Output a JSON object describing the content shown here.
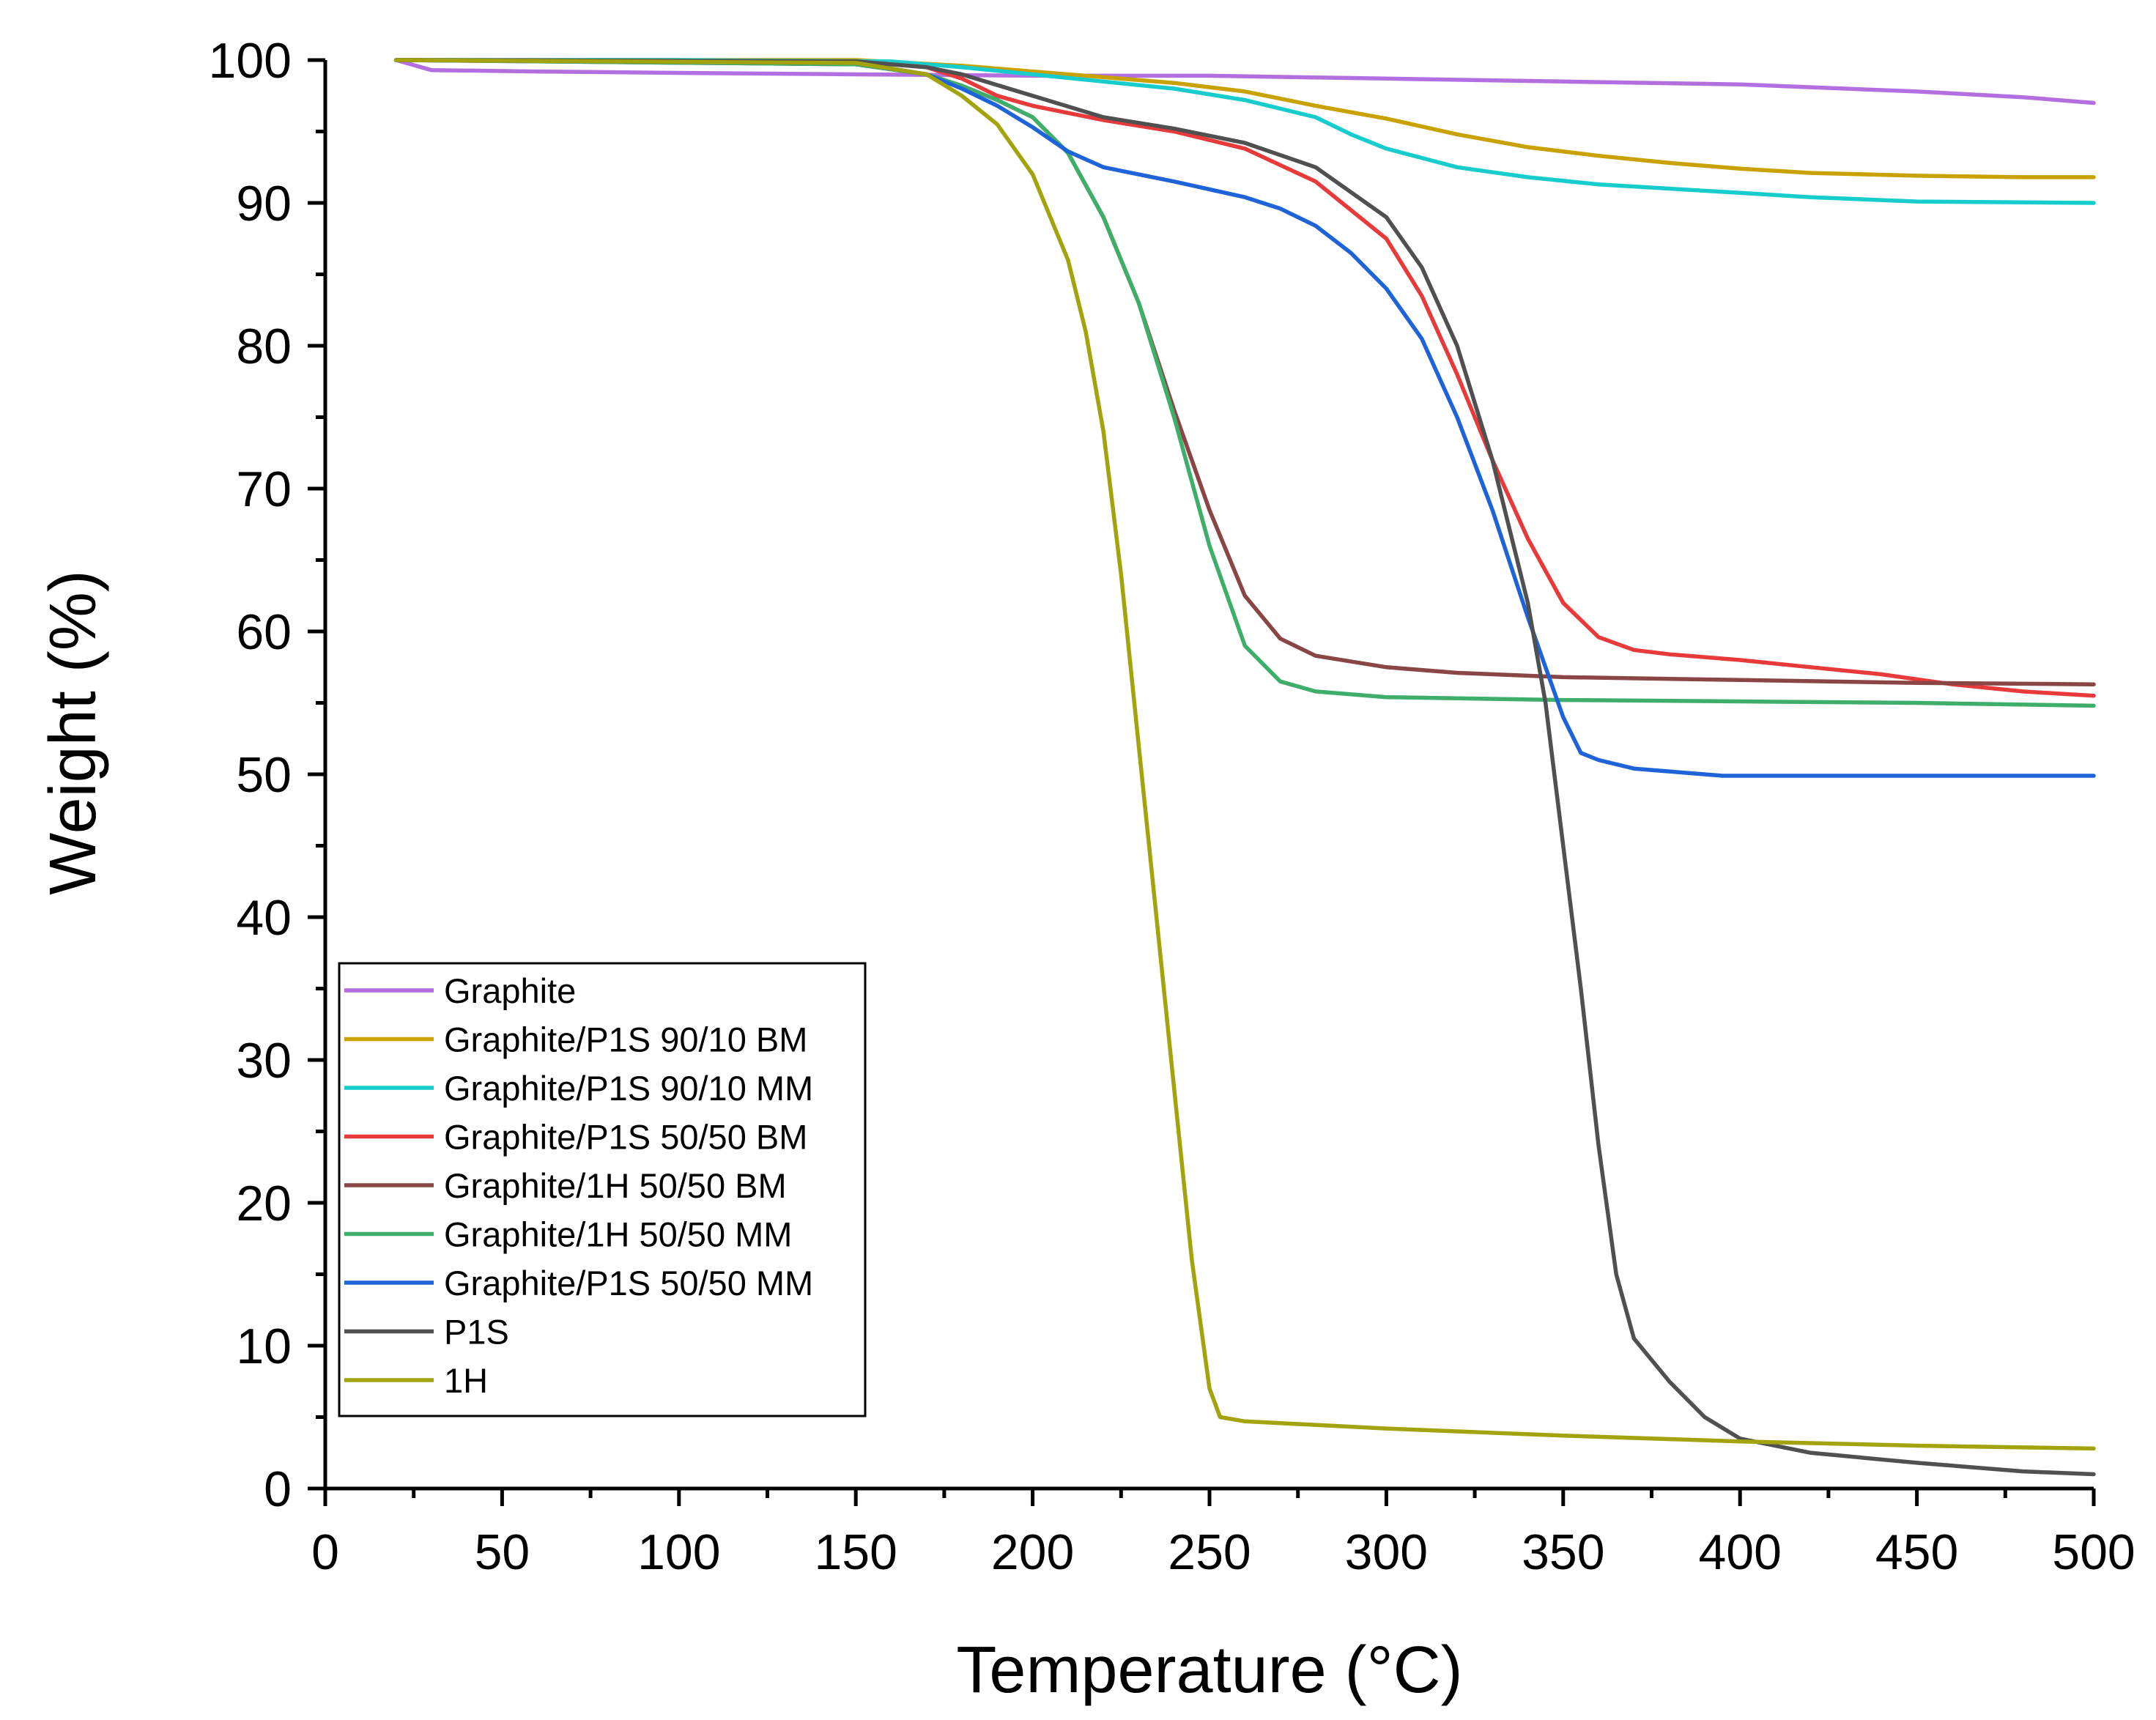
{
  "chart_data": {
    "type": "line",
    "title": "",
    "xlabel": "Temperature (°C)",
    "ylabel": "Weight (%)",
    "xlim": [
      0,
      500
    ],
    "ylim": [
      0,
      100
    ],
    "x_ticks": [
      0,
      50,
      100,
      150,
      200,
      250,
      300,
      350,
      400,
      450,
      500
    ],
    "y_ticks": [
      0,
      10,
      20,
      30,
      40,
      50,
      60,
      70,
      80,
      90,
      100
    ],
    "grid": false,
    "legend_position": "bottom-left",
    "series": [
      {
        "name": "Graphite",
        "color": "#b36fe0",
        "points": [
          [
            20,
            100
          ],
          [
            30,
            99.3
          ],
          [
            60,
            99.2
          ],
          [
            100,
            99.1
          ],
          [
            150,
            99
          ],
          [
            200,
            98.9
          ],
          [
            250,
            98.9
          ],
          [
            300,
            98.7
          ],
          [
            350,
            98.5
          ],
          [
            400,
            98.3
          ],
          [
            450,
            97.8
          ],
          [
            480,
            97.4
          ],
          [
            500,
            97
          ]
        ]
      },
      {
        "name": "Graphite/P1S 90/10 BM",
        "color": "#c9a100",
        "points": [
          [
            20,
            100
          ],
          [
            100,
            100
          ],
          [
            150,
            100
          ],
          [
            180,
            99.6
          ],
          [
            200,
            99.2
          ],
          [
            220,
            98.8
          ],
          [
            240,
            98.4
          ],
          [
            260,
            97.8
          ],
          [
            280,
            96.8
          ],
          [
            300,
            95.9
          ],
          [
            320,
            94.8
          ],
          [
            340,
            93.9
          ],
          [
            360,
            93.3
          ],
          [
            380,
            92.8
          ],
          [
            400,
            92.4
          ],
          [
            420,
            92.1
          ],
          [
            450,
            91.9
          ],
          [
            480,
            91.8
          ],
          [
            500,
            91.8
          ]
        ]
      },
      {
        "name": "Graphite/P1S 90/10 MM",
        "color": "#17cccc",
        "points": [
          [
            20,
            100
          ],
          [
            100,
            100
          ],
          [
            160,
            99.9
          ],
          [
            180,
            99.5
          ],
          [
            200,
            99
          ],
          [
            220,
            98.5
          ],
          [
            240,
            98
          ],
          [
            260,
            97.2
          ],
          [
            280,
            96
          ],
          [
            290,
            94.8
          ],
          [
            300,
            93.8
          ],
          [
            320,
            92.5
          ],
          [
            340,
            91.8
          ],
          [
            360,
            91.3
          ],
          [
            380,
            91
          ],
          [
            400,
            90.7
          ],
          [
            420,
            90.4
          ],
          [
            450,
            90.1
          ],
          [
            500,
            90
          ]
        ]
      },
      {
        "name": "Graphite/P1S 50/50 BM",
        "color": "#e83a3a",
        "points": [
          [
            20,
            100
          ],
          [
            150,
            99.9
          ],
          [
            170,
            99.5
          ],
          [
            180,
            98.7
          ],
          [
            190,
            97.5
          ],
          [
            200,
            96.8
          ],
          [
            220,
            95.8
          ],
          [
            240,
            95
          ],
          [
            260,
            93.8
          ],
          [
            280,
            91.5
          ],
          [
            300,
            87.5
          ],
          [
            310,
            83.5
          ],
          [
            320,
            78
          ],
          [
            330,
            72
          ],
          [
            340,
            66.5
          ],
          [
            350,
            62
          ],
          [
            360,
            59.6
          ],
          [
            370,
            58.7
          ],
          [
            380,
            58.4
          ],
          [
            400,
            58
          ],
          [
            420,
            57.5
          ],
          [
            440,
            57
          ],
          [
            460,
            56.3
          ],
          [
            480,
            55.8
          ],
          [
            500,
            55.5
          ]
        ]
      },
      {
        "name": "Graphite/1H 50/50 BM",
        "color": "#8a4545",
        "points": [
          [
            20,
            100
          ],
          [
            150,
            99.7
          ],
          [
            170,
            99
          ],
          [
            180,
            98.2
          ],
          [
            190,
            97.2
          ],
          [
            200,
            96
          ],
          [
            210,
            93.5
          ],
          [
            220,
            89
          ],
          [
            230,
            83
          ],
          [
            240,
            75.5
          ],
          [
            250,
            68.5
          ],
          [
            260,
            62.5
          ],
          [
            270,
            59.5
          ],
          [
            280,
            58.3
          ],
          [
            300,
            57.5
          ],
          [
            320,
            57.1
          ],
          [
            350,
            56.8
          ],
          [
            400,
            56.6
          ],
          [
            450,
            56.4
          ],
          [
            500,
            56.3
          ]
        ]
      },
      {
        "name": "Graphite/1H 50/50 MM",
        "color": "#3fae6b",
        "points": [
          [
            20,
            100
          ],
          [
            150,
            99.7
          ],
          [
            170,
            99
          ],
          [
            180,
            98.2
          ],
          [
            190,
            97.2
          ],
          [
            200,
            96
          ],
          [
            210,
            93.5
          ],
          [
            220,
            89
          ],
          [
            230,
            83
          ],
          [
            240,
            75
          ],
          [
            250,
            66
          ],
          [
            260,
            59
          ],
          [
            270,
            56.5
          ],
          [
            280,
            55.8
          ],
          [
            300,
            55.4
          ],
          [
            350,
            55.2
          ],
          [
            400,
            55.1
          ],
          [
            450,
            55
          ],
          [
            500,
            54.8
          ]
        ]
      },
      {
        "name": "Graphite/P1S 50/50 MM",
        "color": "#1f63d8",
        "points": [
          [
            20,
            100
          ],
          [
            150,
            99.8
          ],
          [
            170,
            99
          ],
          [
            180,
            98
          ],
          [
            190,
            96.8
          ],
          [
            200,
            95.3
          ],
          [
            210,
            93.6
          ],
          [
            220,
            92.5
          ],
          [
            240,
            91.5
          ],
          [
            260,
            90.4
          ],
          [
            270,
            89.6
          ],
          [
            280,
            88.4
          ],
          [
            290,
            86.5
          ],
          [
            300,
            84
          ],
          [
            310,
            80.5
          ],
          [
            320,
            75
          ],
          [
            330,
            68.5
          ],
          [
            340,
            61
          ],
          [
            350,
            54
          ],
          [
            355,
            51.5
          ],
          [
            360,
            51
          ],
          [
            370,
            50.4
          ],
          [
            380,
            50.2
          ],
          [
            395,
            49.9
          ],
          [
            420,
            49.9
          ],
          [
            450,
            49.9
          ],
          [
            500,
            49.9
          ]
        ]
      },
      {
        "name": "P1S",
        "color": "#505050",
        "points": [
          [
            20,
            100
          ],
          [
            150,
            99.9
          ],
          [
            170,
            99.5
          ],
          [
            180,
            99
          ],
          [
            200,
            97.5
          ],
          [
            220,
            96
          ],
          [
            240,
            95.2
          ],
          [
            260,
            94.2
          ],
          [
            280,
            92.5
          ],
          [
            300,
            89
          ],
          [
            310,
            85.5
          ],
          [
            320,
            80
          ],
          [
            330,
            72
          ],
          [
            340,
            62
          ],
          [
            345,
            55
          ],
          [
            350,
            45
          ],
          [
            355,
            35
          ],
          [
            360,
            24
          ],
          [
            365,
            15
          ],
          [
            370,
            10.5
          ],
          [
            380,
            7.5
          ],
          [
            390,
            5
          ],
          [
            400,
            3.5
          ],
          [
            420,
            2.5
          ],
          [
            450,
            1.8
          ],
          [
            480,
            1.2
          ],
          [
            500,
            1
          ]
        ]
      },
      {
        "name": "1H",
        "color": "#a3a30e",
        "points": [
          [
            20,
            100
          ],
          [
            150,
            99.8
          ],
          [
            170,
            99
          ],
          [
            180,
            97.5
          ],
          [
            190,
            95.5
          ],
          [
            200,
            92
          ],
          [
            210,
            86
          ],
          [
            215,
            81
          ],
          [
            220,
            74
          ],
          [
            225,
            64
          ],
          [
            230,
            52
          ],
          [
            235,
            40
          ],
          [
            240,
            28
          ],
          [
            245,
            16
          ],
          [
            250,
            7
          ],
          [
            253,
            5
          ],
          [
            260,
            4.7
          ],
          [
            300,
            4.2
          ],
          [
            350,
            3.7
          ],
          [
            400,
            3.3
          ],
          [
            450,
            3
          ],
          [
            500,
            2.8
          ]
        ]
      }
    ]
  }
}
